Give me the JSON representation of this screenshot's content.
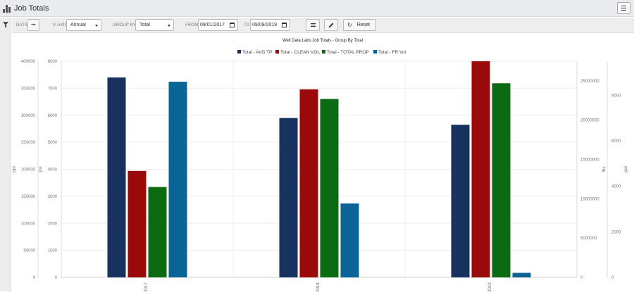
{
  "window": {
    "title": "Job Totals"
  },
  "toolbar": {
    "data_label": "DATA",
    "data_button": "•••",
    "xaxis_label": "X-AXIS",
    "xaxis_value": "Annual",
    "groupby_label": "GROUP BY",
    "groupby_value": "Total",
    "from_label": "FROM",
    "from_value": "09/01/2017",
    "to_label": "TO",
    "to_value": "09/09/2019",
    "reset_label": "Reset"
  },
  "colors": {
    "avg_tp": "#17325e",
    "clean_vol": "#9b0a0a",
    "total_prop": "#0b6b12",
    "fr_vol": "#0a6496"
  },
  "chart_data": {
    "type": "bar",
    "title": "Well Data Labs Job Totals - Group By Total",
    "legend_position": "top-center",
    "grid": true,
    "categories": [
      "2017",
      "2018",
      "2019"
    ],
    "series": [
      {
        "name": "Total - AVG TP",
        "axis": "psi",
        "values": [
          7400,
          5900,
          5650
        ]
      },
      {
        "name": "Total - CLEAN VOL",
        "axis": "bbl",
        "values": [
          197000,
          348000,
          400000
        ]
      },
      {
        "name": "Total - TOTAL PROP",
        "axis": "lbs",
        "values": [
          11500000,
          22700000,
          24700000
        ]
      },
      {
        "name": "Total - FR Vol",
        "axis": "gal",
        "values": [
          8600,
          3250,
          200
        ]
      }
    ],
    "axes": {
      "bbl": {
        "label": "bbl",
        "side": "left-outer",
        "ylim": [
          0,
          400000
        ],
        "ticks": [
          0,
          50000,
          100000,
          150000,
          200000,
          250000,
          300000,
          350000,
          400000
        ]
      },
      "psi": {
        "label": "psi",
        "side": "left-inner",
        "ylim": [
          0,
          8000
        ],
        "ticks": [
          0,
          1000,
          2000,
          3000,
          4000,
          5000,
          6000,
          7000,
          8000
        ]
      },
      "lbs": {
        "label": "lbs",
        "side": "right-inner",
        "ylim": [
          0,
          27500000
        ],
        "ticks": [
          0,
          5000000,
          10000000,
          15000000,
          20000000,
          25000000
        ]
      },
      "gal": {
        "label": "gal",
        "side": "right-outer",
        "ylim": [
          0,
          9500
        ],
        "ticks": [
          0,
          2000,
          4000,
          6000,
          8000
        ]
      }
    }
  }
}
